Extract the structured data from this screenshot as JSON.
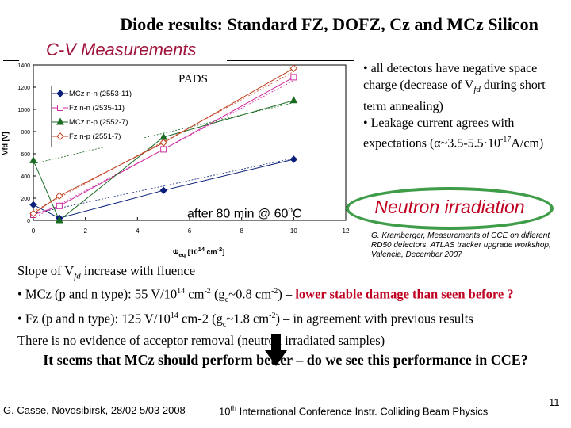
{
  "title": "Diode results: Standard FZ, DOFZ, Cz and MCz Silicon",
  "subtitle": "C-V Measurements",
  "bullets": [
    "• all detectors have negative space charge (decrease of V",
    "fd",
    " during short term annealing)",
    "• Leakage current agrees with expectations (α~3.5-5.5·10",
    "-17",
    "A/cm)"
  ],
  "neutron_label": "Neutron irradiation",
  "reference": "G. Kramberger, Measurements of CCE on different RD50 defectors, ATLAS tracker upgrade workshop, Valencia, December 2007",
  "body": {
    "line1_a": "Slope of V",
    "line1_sub": "fd",
    "line1_b": " increase with fluence",
    "line2_a": "• MCz (p and n type): 55 V/10",
    "line2_sup": "14",
    "line2_b": " cm",
    "line2_sup2": "-2",
    "line2_c": " (g",
    "line2_sub": "c",
    "line2_d": "~0.8 cm",
    "line2_sup3": "-2",
    "line2_e": ") – ",
    "line2_red": "lower stable damage than seen before ?",
    "line3_a": "• Fz (p and n type): 125 V/10",
    "line3_sup": "14",
    "line3_b": " cm-2  (g",
    "line3_sub": "c",
    "line3_c": "~1.8 cm",
    "line3_sup2": "-2",
    "line3_d": ") – in agreement with previous results",
    "line4": "There is no evidence of acceptor removal (neutron irradiated samples)"
  },
  "question": "It seems that MCz should perform better – do we see this performance in CCE?",
  "footer_left": "G. Casse, Novosibirsk, 28/02 5/03 2008",
  "footer_right_pre": "10",
  "footer_right_sup": "th",
  "footer_right_post": " International Conference Instr. Colliding Beam Physics",
  "page_number": "11",
  "chart_data": {
    "type": "scatter",
    "title": "",
    "panel_label": "PADS",
    "annotation": "after 80 min @ 60",
    "annotation_sup": "o",
    "annotation_end": "C",
    "ylabel": "Vfd [V]",
    "xlabel_main": "Φ",
    "xlabel_sub": "eq",
    "xlabel_rest": " [10",
    "xlabel_sup": "14",
    "xlabel_end": " cm",
    "xlabel_sup2": "-2",
    "xlabel_close": "]",
    "xlim": [
      0,
      12
    ],
    "ylim": [
      0,
      1400
    ],
    "xticks": [
      "0",
      "2",
      "4",
      "6",
      "8",
      "10",
      "12"
    ],
    "yticks": [
      "0",
      "200",
      "400",
      "600",
      "800",
      "1000",
      "1200",
      "1400"
    ],
    "series": [
      {
        "name": "MCz n-n (2553-11)",
        "color": "#0a1f7a",
        "marker": "diamond-filled",
        "x": [
          0,
          1,
          5,
          10
        ],
        "y": [
          140,
          20,
          270,
          550
        ],
        "fit": [
          [
            0,
            60
          ],
          [
            10,
            560
          ]
        ]
      },
      {
        "name": "Fz n-n (2535-11)",
        "color": "#d02aa0",
        "marker": "square-open",
        "x": [
          0,
          1,
          5,
          10
        ],
        "y": [
          50,
          130,
          640,
          1290
        ],
        "fit": [
          [
            0,
            20
          ],
          [
            10,
            1260
          ]
        ]
      },
      {
        "name": "MCz n-p (2552-7)",
        "color": "#1a6b22",
        "marker": "triangle-filled",
        "x": [
          0,
          1,
          5,
          10
        ],
        "y": [
          540,
          0,
          750,
          1080
        ],
        "fit": [
          [
            0,
            510
          ],
          [
            10,
            1060
          ]
        ]
      },
      {
        "name": "Fz n-p (2551-7)",
        "color": "#c04020",
        "marker": "diamond-open",
        "x": [
          0,
          1,
          5,
          10
        ],
        "y": [
          60,
          220,
          700,
          1370
        ],
        "fit": [
          [
            0,
            80
          ],
          [
            10,
            1340
          ]
        ]
      }
    ]
  }
}
